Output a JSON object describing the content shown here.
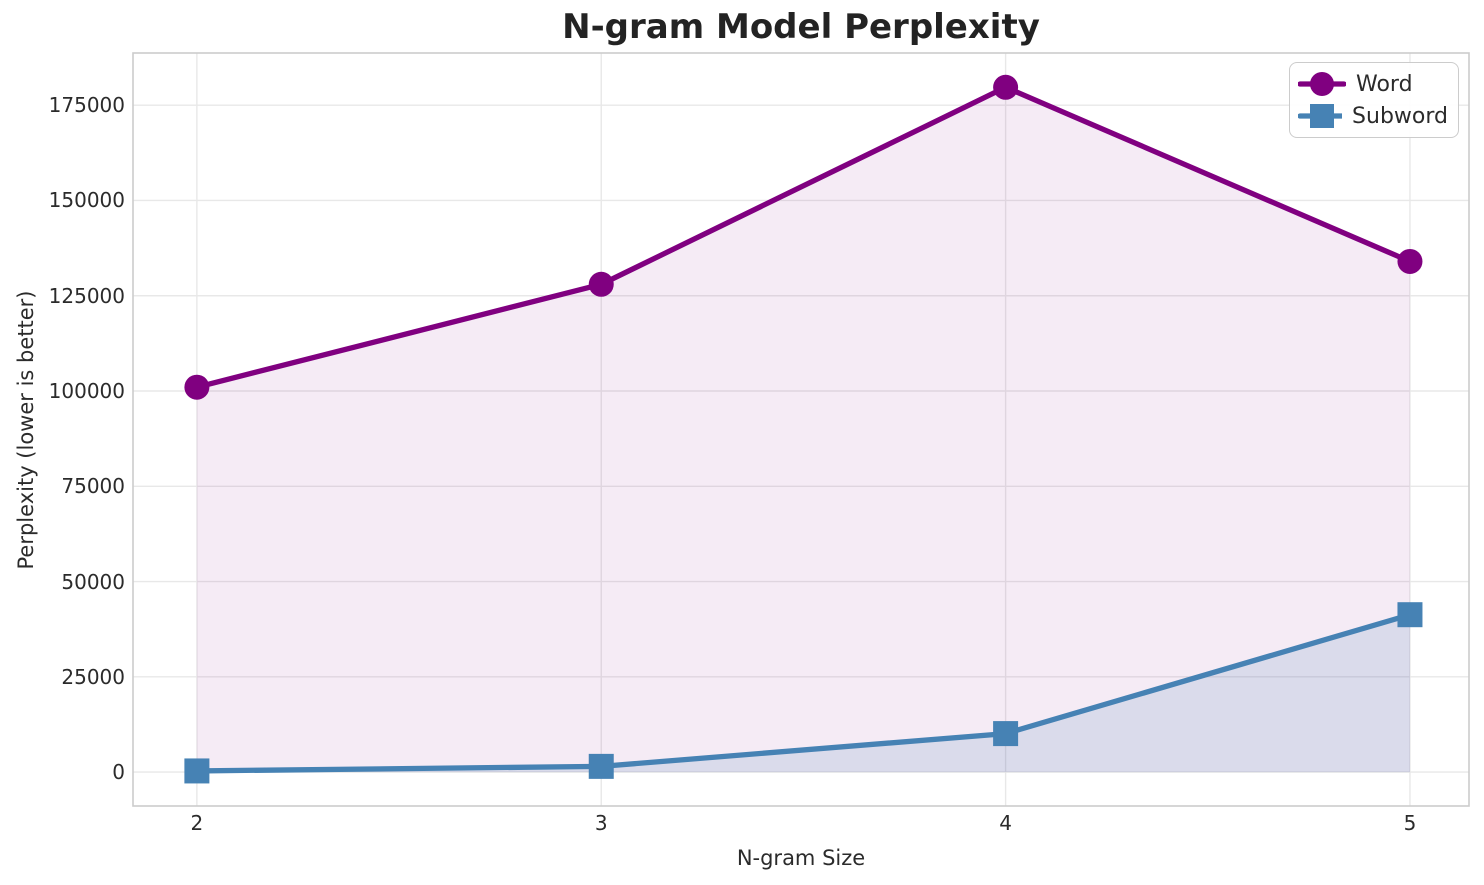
{
  "chart_data": {
    "type": "line",
    "title": "N-gram Model Perplexity",
    "xlabel": "N-gram Size",
    "ylabel": "Perplexity (lower is better)",
    "x": [
      2,
      3,
      4,
      5
    ],
    "series": [
      {
        "name": "Word",
        "marker": "circle",
        "color": "#800080",
        "fill_color": "rgba(128,0,128,0.08)",
        "values": [
          101000,
          128000,
          179700,
          134000
        ]
      },
      {
        "name": "Subword",
        "marker": "square",
        "color": "#4682b4",
        "fill_color": "rgba(70,130,180,0.15)",
        "values": [
          300,
          1500,
          10100,
          41300
        ]
      }
    ],
    "area_fill_to_zero": true,
    "xticks": [
      "2",
      "3",
      "4",
      "5"
    ],
    "xtick_values": [
      2,
      3,
      4,
      5
    ],
    "yticks": [
      "0",
      "25000",
      "50000",
      "75000",
      "100000",
      "125000",
      "150000",
      "175000"
    ],
    "ytick_values": [
      0,
      25000,
      50000,
      75000,
      100000,
      125000,
      150000,
      175000
    ],
    "xlim": [
      1.842,
      5.146
    ],
    "ylim": [
      -8900,
      188700
    ],
    "grid": true,
    "legend_position": "upper right",
    "colors": {
      "grid": "#e8e8e8",
      "spine": "#cccccc",
      "text": "#2b2b2b",
      "title": "#232323",
      "background": "#ffffff"
    }
  }
}
